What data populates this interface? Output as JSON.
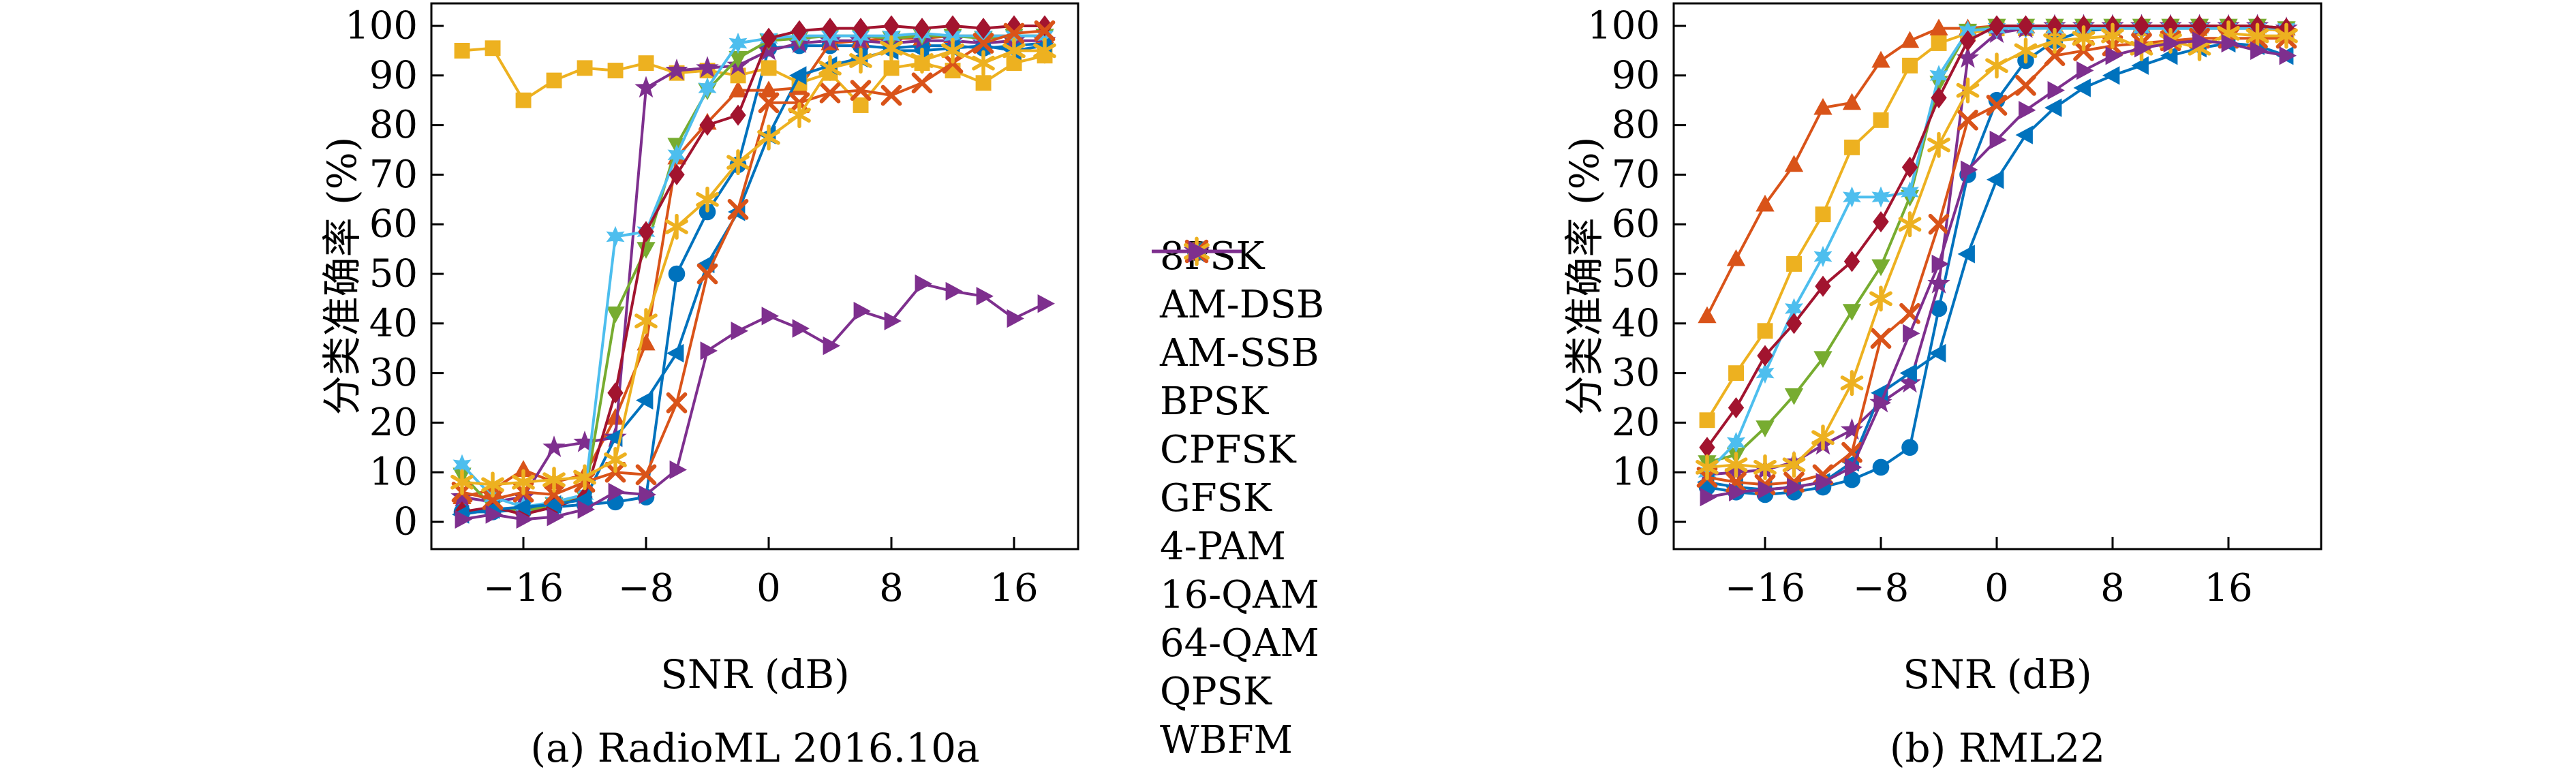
{
  "figure": {
    "background": "#ffffff",
    "axis_color": "#000000"
  },
  "legend": {
    "items": [
      {
        "label": "8PSK",
        "marker": "circle",
        "color": "#0072BD"
      },
      {
        "label": "AM-DSB",
        "marker": "triangle-up",
        "color": "#D95319"
      },
      {
        "label": "AM-SSB",
        "marker": "square",
        "color": "#EDB120"
      },
      {
        "label": "BPSK",
        "marker": "star5",
        "color": "#7E2F8E"
      },
      {
        "label": "CPFSK",
        "marker": "triangle-down",
        "color": "#77AC30"
      },
      {
        "label": "GFSK",
        "marker": "hexagram",
        "color": "#4DBEEE"
      },
      {
        "label": "4-PAM",
        "marker": "diamond",
        "color": "#A2142F"
      },
      {
        "label": "16-QAM",
        "marker": "triangle-left",
        "color": "#0072BD"
      },
      {
        "label": "64-QAM",
        "marker": "x",
        "color": "#D95319"
      },
      {
        "label": "QPSK",
        "marker": "asterisk",
        "color": "#EDB120"
      },
      {
        "label": "WBFM",
        "marker": "triangle-right",
        "color": "#7E2F8E"
      }
    ]
  },
  "chart_data": [
    {
      "type": "line",
      "caption": "(a) RadioML 2016.10a",
      "xlabel": "SNR (dB)",
      "ylabel": "分类准确率 (%)",
      "xlim": [
        -22,
        20
      ],
      "ylim": [
        0,
        100
      ],
      "x_ticks": [
        -16,
        -8,
        0,
        8,
        16
      ],
      "y_ticks": [
        0,
        10,
        20,
        30,
        40,
        50,
        60,
        70,
        80,
        90,
        100
      ],
      "grid": false,
      "x": [
        -20,
        -18,
        -16,
        -14,
        -12,
        -10,
        -8,
        -6,
        -4,
        -2,
        0,
        2,
        4,
        6,
        8,
        10,
        12,
        14,
        16,
        18
      ],
      "series": [
        {
          "name": "8PSK",
          "marker": "circle",
          "color": "#0072BD",
          "values": [
            2,
            2,
            2.5,
            3,
            3.5,
            4,
            5,
            50,
            62.5,
            72,
            95.5,
            96,
            96,
            96,
            95.5,
            96,
            96,
            95.5,
            96,
            96.5
          ]
        },
        {
          "name": "AM-DSB",
          "marker": "triangle-up",
          "color": "#D95319",
          "values": [
            5,
            6.5,
            10.5,
            8,
            9.5,
            21,
            36,
            73.5,
            80.5,
            87,
            87,
            87.5,
            96.5,
            97,
            97.5,
            97.5,
            98,
            98,
            98,
            98
          ]
        },
        {
          "name": "AM-SSB",
          "marker": "square",
          "color": "#EDB120",
          "values": [
            95,
            95.5,
            85,
            89,
            91.5,
            91,
            92.5,
            90.5,
            91,
            90,
            91.5,
            88.5,
            90.5,
            84,
            91.5,
            92.5,
            91,
            88.5,
            92.5,
            94
          ]
        },
        {
          "name": "BPSK",
          "marker": "star5",
          "color": "#7E2F8E",
          "values": [
            5,
            4,
            5,
            15,
            16,
            17,
            87.5,
            91,
            91.5,
            92,
            95,
            96.5,
            97,
            97,
            96.5,
            97,
            97,
            96.5,
            97,
            97
          ]
        },
        {
          "name": "CPFSK",
          "marker": "triangle-down",
          "color": "#77AC30",
          "values": [
            9.5,
            3,
            2,
            3.5,
            5,
            42,
            55,
            76,
            87,
            93.5,
            97,
            97.5,
            98,
            98,
            97.5,
            98,
            98,
            97.5,
            98,
            98
          ]
        },
        {
          "name": "GFSK",
          "marker": "hexagram",
          "color": "#4DBEEE",
          "values": [
            11.5,
            5,
            3,
            4,
            5.5,
            57.5,
            58.5,
            74,
            87.5,
            96.5,
            97.5,
            98,
            98,
            98,
            98,
            98.5,
            98,
            98,
            98,
            98
          ]
        },
        {
          "name": "4-PAM",
          "marker": "diamond",
          "color": "#A2142F",
          "values": [
            2,
            3,
            1.5,
            3,
            5,
            26,
            58.5,
            70,
            80,
            82,
            97.5,
            99,
            99.5,
            99.5,
            100,
            99.5,
            100,
            99.5,
            100,
            100
          ]
        },
        {
          "name": "16-QAM",
          "marker": "triangle-left",
          "color": "#0072BD",
          "values": [
            1.5,
            2.5,
            3,
            3.5,
            4.5,
            17,
            24.5,
            34,
            52,
            62.5,
            78,
            90,
            92,
            93.5,
            95,
            95,
            95.5,
            96,
            95,
            96
          ]
        },
        {
          "name": "64-QAM",
          "marker": "x",
          "color": "#D95319",
          "values": [
            6,
            4.5,
            6,
            5.5,
            8,
            10,
            9.5,
            24,
            50,
            63,
            84.5,
            84.5,
            86.5,
            87,
            86,
            88.5,
            92.5,
            96.5,
            98.5,
            99
          ]
        },
        {
          "name": "QPSK",
          "marker": "asterisk",
          "color": "#EDB120",
          "values": [
            8,
            7.5,
            8,
            8.5,
            9,
            12.5,
            40.5,
            59.5,
            65,
            72.5,
            77.5,
            82,
            91.5,
            93,
            95.5,
            93,
            95,
            92.5,
            95,
            95
          ]
        },
        {
          "name": "WBFM",
          "marker": "triangle-right",
          "color": "#7E2F8E",
          "values": [
            0.5,
            1.5,
            0.5,
            1,
            2.5,
            6,
            5.5,
            10.5,
            34.5,
            38.5,
            41.5,
            39,
            35.5,
            42.5,
            40.5,
            48,
            46.5,
            45.5,
            41,
            44
          ]
        }
      ]
    },
    {
      "type": "line",
      "caption": "(b) RML22",
      "xlabel": "SNR (dB)",
      "ylabel": "分类准确率 (%)",
      "xlim": [
        -22,
        22
      ],
      "ylim": [
        0,
        100
      ],
      "x_ticks": [
        -16,
        -8,
        0,
        8,
        16
      ],
      "y_ticks": [
        0,
        10,
        20,
        30,
        40,
        50,
        60,
        70,
        80,
        90,
        100
      ],
      "grid": false,
      "x": [
        -20,
        -18,
        -16,
        -14,
        -12,
        -10,
        -8,
        -6,
        -4,
        -2,
        0,
        2,
        4,
        6,
        8,
        10,
        12,
        14,
        16,
        18,
        20
      ],
      "series": [
        {
          "name": "8PSK",
          "marker": "circle",
          "color": "#0072BD",
          "values": [
            7,
            6,
            5.5,
            6,
            7,
            8.5,
            11,
            15,
            43,
            70,
            85,
            93,
            97,
            99,
            99.5,
            99.5,
            99.5,
            99.5,
            99.5,
            99.5,
            99
          ]
        },
        {
          "name": "AM-DSB",
          "marker": "triangle-up",
          "color": "#D95319",
          "values": [
            41.5,
            53,
            64,
            72,
            83.5,
            84.5,
            93,
            97,
            99.5,
            99.5,
            100,
            100,
            100,
            100,
            100,
            100,
            100,
            100,
            100,
            100,
            99.5
          ]
        },
        {
          "name": "AM-SSB",
          "marker": "square",
          "color": "#EDB120",
          "values": [
            20.5,
            30,
            38.5,
            52,
            62,
            75.5,
            81,
            92,
            96.5,
            98.5,
            99.5,
            99.5,
            99.5,
            99.5,
            99.5,
            99.5,
            99.5,
            99.5,
            99.5,
            99.5,
            99
          ]
        },
        {
          "name": "BPSK",
          "marker": "star5",
          "color": "#7E2F8E",
          "values": [
            9.5,
            10,
            10.5,
            12,
            15.5,
            18.5,
            24,
            28,
            48,
            93.5,
            98.5,
            99.5,
            100,
            100,
            100,
            100,
            100,
            100,
            100,
            100,
            99.5
          ]
        },
        {
          "name": "CPFSK",
          "marker": "triangle-down",
          "color": "#77AC30",
          "values": [
            12,
            13.5,
            19,
            25.5,
            33,
            42.5,
            51.5,
            65.5,
            88.5,
            99,
            100,
            100,
            100,
            100,
            100,
            100,
            100,
            100,
            100,
            100,
            99.5
          ]
        },
        {
          "name": "GFSK",
          "marker": "hexagram",
          "color": "#4DBEEE",
          "values": [
            10,
            16,
            30,
            43,
            53.5,
            65.5,
            65.5,
            66.5,
            90,
            99,
            99.5,
            99.5,
            99.5,
            99.5,
            99.5,
            99.5,
            99.5,
            99.5,
            99.5,
            99.5,
            99.5
          ]
        },
        {
          "name": "4-PAM",
          "marker": "diamond",
          "color": "#A2142F",
          "values": [
            15,
            23,
            33.5,
            40,
            47.5,
            52.5,
            60.5,
            71.5,
            85.5,
            97,
            100,
            100,
            100,
            100,
            100,
            100,
            100,
            100,
            100,
            100,
            99.5
          ]
        },
        {
          "name": "16-QAM",
          "marker": "triangle-left",
          "color": "#0072BD",
          "values": [
            8,
            7,
            6.5,
            7,
            8,
            12,
            26,
            30,
            34,
            54,
            69,
            78,
            83.5,
            87.5,
            90,
            92,
            94,
            95.5,
            96.5,
            96,
            94
          ]
        },
        {
          "name": "64-QAM",
          "marker": "x",
          "color": "#D95319",
          "values": [
            9,
            8,
            7.5,
            8,
            9.5,
            14,
            37,
            42,
            60,
            81,
            84,
            88,
            94,
            95,
            96,
            96.5,
            97,
            97.5,
            97.5,
            97.5,
            97.5
          ]
        },
        {
          "name": "QPSK",
          "marker": "asterisk",
          "color": "#EDB120",
          "values": [
            11,
            11.5,
            11,
            11.5,
            17,
            28,
            45,
            60,
            76,
            87,
            92,
            95,
            97,
            97.5,
            98,
            95.5,
            97,
            95.5,
            98.5,
            98,
            98
          ]
        },
        {
          "name": "WBFM",
          "marker": "triangle-right",
          "color": "#7E2F8E",
          "values": [
            5,
            6,
            6.5,
            7,
            8,
            11,
            24,
            38,
            52,
            71,
            77,
            83,
            87,
            91,
            94,
            95.5,
            96.5,
            97,
            96.5,
            95,
            94
          ]
        }
      ]
    }
  ]
}
